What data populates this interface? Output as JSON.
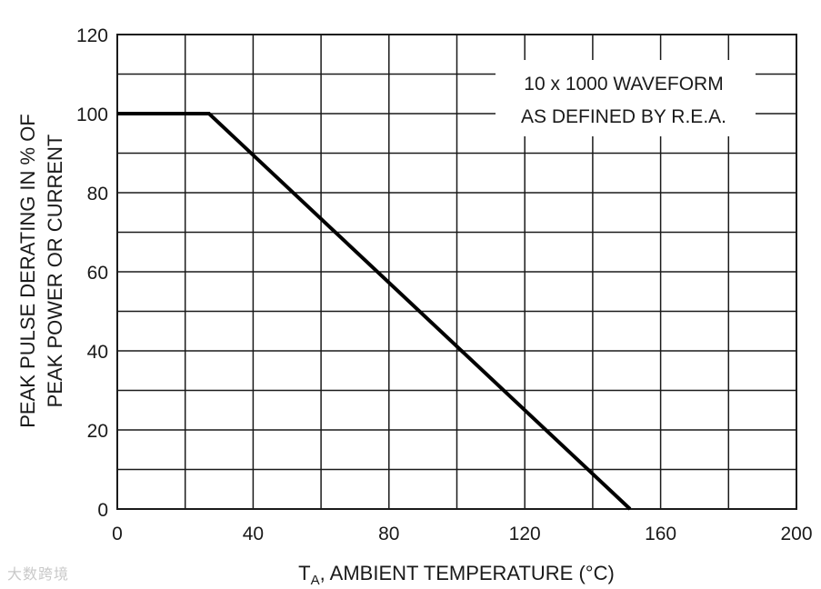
{
  "chart_data": {
    "type": "line",
    "title": "",
    "xlabel_main": "T",
    "xlabel_sub": "A",
    "xlabel_rest": ", AMBIENT TEMPERATURE (°C)",
    "ylabel_line1": "PEAK PULSE DERATING IN % OF",
    "ylabel_line2": "PEAK POWER OR CURRENT",
    "xlim": [
      0,
      200
    ],
    "ylim": [
      0,
      120
    ],
    "x_ticks": [
      0,
      40,
      80,
      120,
      160,
      200
    ],
    "y_ticks": [
      0,
      20,
      40,
      60,
      80,
      100,
      120
    ],
    "x_grid_step": 20,
    "y_grid_step": 10,
    "grid": true,
    "annotation_line1": "10 x 1000 WAVEFORM",
    "annotation_line2": "AS DEFINED BY R.E.A.",
    "series": [
      {
        "x": [
          0,
          27,
          151
        ],
        "y": [
          100,
          100,
          0
        ]
      }
    ]
  },
  "watermark_text": "大数跨境"
}
